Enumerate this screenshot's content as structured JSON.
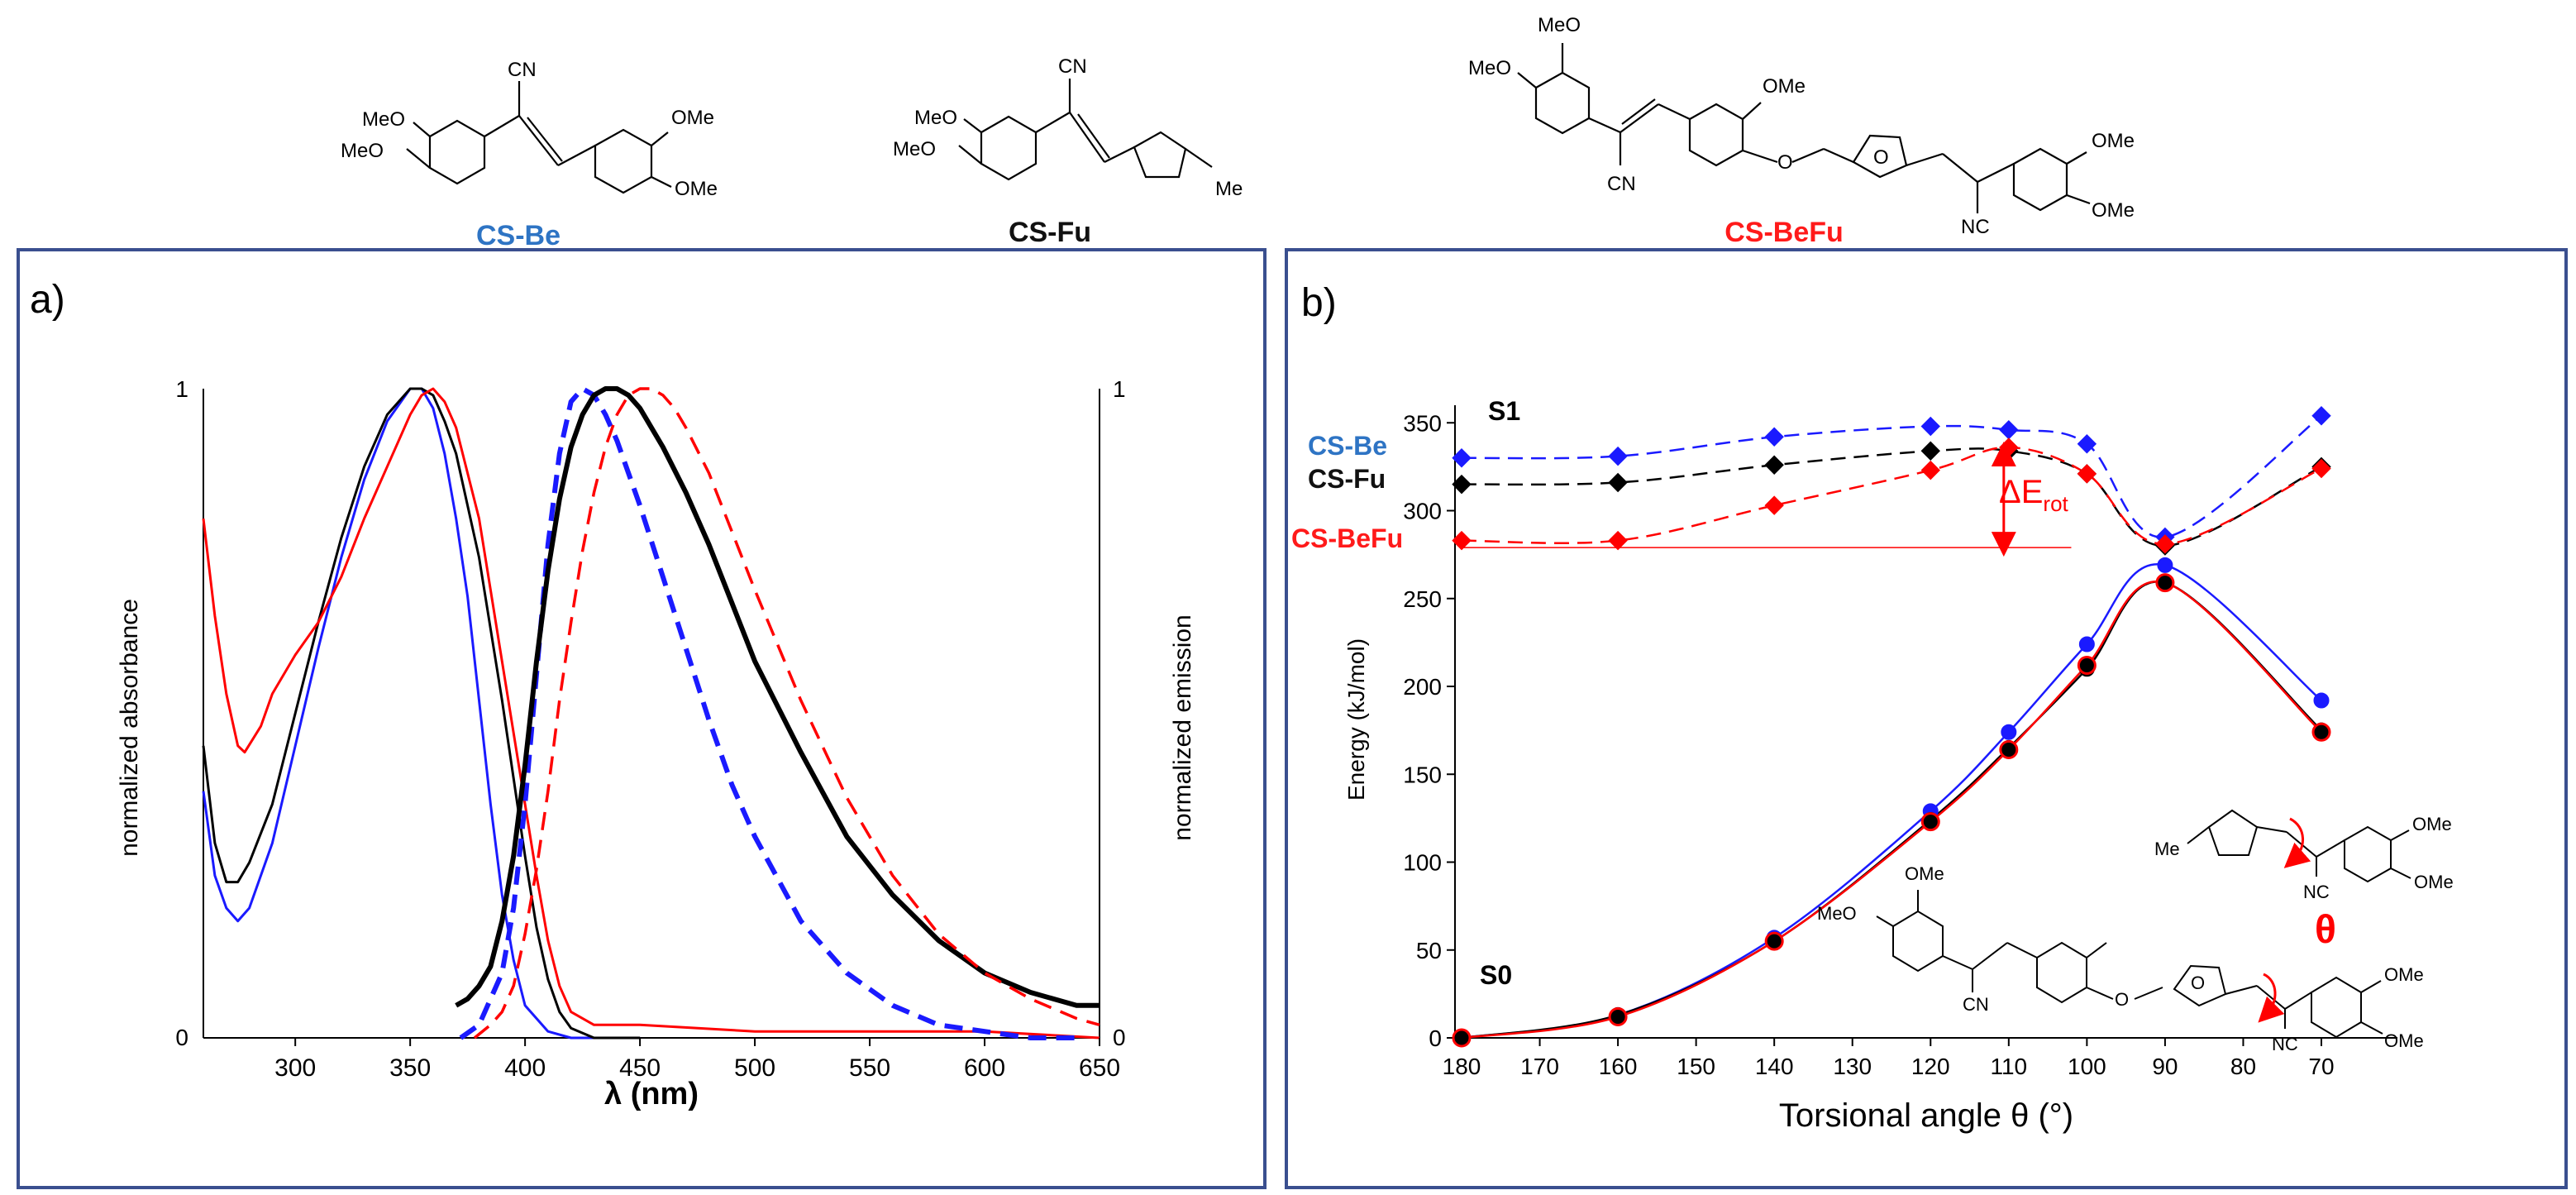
{
  "compounds": {
    "cs_be": {
      "label": "CS-Be",
      "color": "#2e74c4",
      "substituents": [
        "MeO",
        "MeO",
        "CN",
        "OMe",
        "OMe"
      ]
    },
    "cs_fu": {
      "label": "CS-Fu",
      "color": "#111111",
      "substituents": [
        "MeO",
        "MeO",
        "CN",
        "Me"
      ]
    },
    "cs_befu": {
      "label": "CS-BeFu",
      "color": "#ff1a1a",
      "substituents": [
        "MeO",
        "MeO",
        "OMe",
        "CN",
        "O",
        "O",
        "NC",
        "OMe",
        "OMe"
      ]
    }
  },
  "panel_a": {
    "label": "a)",
    "xlabel": "λ (nm)",
    "ylabel_left": "normalized absorbance",
    "ylabel_right": "normalized emission",
    "y_ticks_left": [
      "0",
      "1"
    ],
    "y_ticks_right": [
      "0",
      "1"
    ],
    "x_ticks": [
      "300",
      "350",
      "400",
      "450",
      "500",
      "550",
      "600",
      "650"
    ]
  },
  "panel_b": {
    "label": "b)",
    "xlabel": "Torsional angle θ (°)",
    "ylabel": "Energy (kJ/mol)",
    "x_ticks": [
      "180",
      "170",
      "160",
      "150",
      "140",
      "130",
      "120",
      "110",
      "100",
      "90",
      "80",
      "70"
    ],
    "y_ticks": [
      "0",
      "50",
      "100",
      "150",
      "200",
      "250",
      "300",
      "350"
    ],
    "state_s1": "S1",
    "state_s0": "S0",
    "delta_label": "ΔE",
    "delta_sub": "rot",
    "theta_label": "θ",
    "legend": [
      "CS-Be",
      "CS-Fu",
      "CS-BeFu"
    ],
    "inset_labels": {
      "me": "Me",
      "nc": "NC",
      "ome1": "OMe",
      "ome2": "OMe",
      "meo": "MeO",
      "ome3": "OMe",
      "cn": "CN",
      "o": "O",
      "o2": "O",
      "nc2": "NC",
      "ome4": "OMe",
      "ome5": "OMe"
    }
  },
  "chart_data": [
    {
      "type": "line",
      "title": "a)",
      "xlabel": "λ (nm)",
      "ylabel": "normalized absorbance / normalized emission",
      "xlim": [
        260,
        650
      ],
      "ylim": [
        0,
        1
      ],
      "series": [
        {
          "name": "CS-Be absorbance",
          "color": "#1a1aff",
          "style": "solid",
          "x": [
            260,
            265,
            270,
            275,
            280,
            290,
            300,
            310,
            320,
            330,
            340,
            350,
            355,
            360,
            365,
            370,
            375,
            380,
            385,
            390,
            395,
            400,
            410,
            420,
            430,
            440,
            450
          ],
          "y": [
            0.38,
            0.25,
            0.2,
            0.18,
            0.2,
            0.3,
            0.45,
            0.6,
            0.74,
            0.86,
            0.95,
            1.0,
            1.0,
            0.97,
            0.9,
            0.8,
            0.68,
            0.52,
            0.36,
            0.22,
            0.12,
            0.05,
            0.01,
            0,
            0,
            0,
            0
          ]
        },
        {
          "name": "CS-Fu absorbance",
          "color": "#000000",
          "style": "solid",
          "x": [
            260,
            265,
            270,
            275,
            280,
            290,
            300,
            310,
            320,
            330,
            340,
            350,
            355,
            360,
            365,
            370,
            380,
            390,
            395,
            400,
            405,
            410,
            415,
            420,
            430,
            440,
            450
          ],
          "y": [
            0.45,
            0.3,
            0.24,
            0.24,
            0.27,
            0.36,
            0.5,
            0.64,
            0.77,
            0.88,
            0.96,
            1.0,
            1.0,
            0.99,
            0.95,
            0.9,
            0.74,
            0.52,
            0.4,
            0.28,
            0.17,
            0.09,
            0.04,
            0.015,
            0,
            0,
            0
          ]
        },
        {
          "name": "CS-BeFu absorbance",
          "color": "#ff0000",
          "style": "solid",
          "x": [
            260,
            265,
            270,
            275,
            278,
            285,
            290,
            300,
            310,
            320,
            330,
            340,
            350,
            355,
            360,
            365,
            370,
            380,
            390,
            400,
            405,
            410,
            415,
            420,
            430,
            450,
            500,
            600,
            650
          ],
          "y": [
            0.8,
            0.65,
            0.53,
            0.45,
            0.44,
            0.48,
            0.53,
            0.59,
            0.64,
            0.71,
            0.8,
            0.88,
            0.96,
            0.99,
            1.0,
            0.98,
            0.94,
            0.8,
            0.58,
            0.36,
            0.25,
            0.15,
            0.08,
            0.04,
            0.02,
            0.02,
            0.01,
            0.01,
            0
          ]
        },
        {
          "name": "CS-Be emission",
          "color": "#1a1aff",
          "style": "dashed",
          "x": [
            372,
            380,
            390,
            395,
            400,
            405,
            410,
            415,
            420,
            425,
            430,
            435,
            440,
            450,
            460,
            470,
            480,
            490,
            500,
            520,
            540,
            560,
            580,
            600,
            620,
            640
          ],
          "y": [
            0,
            0.02,
            0.1,
            0.2,
            0.36,
            0.56,
            0.76,
            0.9,
            0.98,
            1.0,
            0.99,
            0.96,
            0.92,
            0.82,
            0.71,
            0.6,
            0.49,
            0.39,
            0.31,
            0.18,
            0.1,
            0.05,
            0.02,
            0.01,
            0,
            0
          ]
        },
        {
          "name": "CS-Fu emission",
          "color": "#000000",
          "style": "solid-thick",
          "x": [
            370,
            375,
            380,
            385,
            390,
            395,
            400,
            405,
            410,
            415,
            420,
            425,
            430,
            435,
            440,
            445,
            450,
            455,
            460,
            470,
            480,
            490,
            500,
            520,
            540,
            560,
            580,
            600,
            620,
            640,
            650
          ],
          "y": [
            0.05,
            0.06,
            0.08,
            0.11,
            0.18,
            0.28,
            0.42,
            0.58,
            0.72,
            0.83,
            0.91,
            0.96,
            0.99,
            1.0,
            1.0,
            0.99,
            0.97,
            0.94,
            0.91,
            0.84,
            0.76,
            0.67,
            0.58,
            0.44,
            0.31,
            0.22,
            0.15,
            0.1,
            0.07,
            0.05,
            0.05
          ]
        },
        {
          "name": "CS-BeFu emission",
          "color": "#ff0000",
          "style": "dashed",
          "x": [
            378,
            385,
            390,
            395,
            400,
            405,
            410,
            415,
            420,
            425,
            430,
            435,
            440,
            445,
            450,
            455,
            460,
            465,
            470,
            480,
            490,
            500,
            520,
            540,
            560,
            580,
            600,
            620,
            640,
            650
          ],
          "y": [
            0,
            0.02,
            0.04,
            0.08,
            0.16,
            0.26,
            0.38,
            0.52,
            0.64,
            0.75,
            0.84,
            0.91,
            0.96,
            0.99,
            1.0,
            1.0,
            0.99,
            0.97,
            0.94,
            0.87,
            0.78,
            0.69,
            0.52,
            0.37,
            0.25,
            0.16,
            0.1,
            0.06,
            0.03,
            0.02
          ]
        }
      ]
    },
    {
      "type": "line",
      "title": "b)",
      "xlabel": "Torsional angle θ (°)",
      "ylabel": "Energy (kJ/mol)",
      "xlim": [
        180,
        65
      ],
      "ylim": [
        0,
        360
      ],
      "x_reversed": true,
      "series": [
        {
          "name": "CS-Be S1",
          "color": "#1a1aff",
          "marker": "diamond",
          "style": "dashed",
          "x": [
            180,
            160,
            140,
            120,
            110,
            100,
            90,
            70
          ],
          "y": [
            330,
            331,
            342,
            348,
            346,
            338,
            285,
            354
          ]
        },
        {
          "name": "CS-Fu S1",
          "color": "#000000",
          "marker": "diamond",
          "style": "dashed",
          "x": [
            180,
            160,
            140,
            120,
            110,
            100,
            90,
            70
          ],
          "y": [
            315,
            316,
            326,
            334,
            334,
            321,
            280,
            325
          ]
        },
        {
          "name": "CS-BeFu S1",
          "color": "#ff0000",
          "marker": "diamond",
          "style": "dashed",
          "x": [
            180,
            160,
            140,
            120,
            110,
            100,
            90,
            70
          ],
          "y": [
            283,
            283,
            303,
            323,
            336,
            321,
            281,
            324
          ]
        },
        {
          "name": "CS-Be S0",
          "color": "#1a1aff",
          "marker": "circle",
          "style": "solid",
          "x": [
            180,
            160,
            140,
            120,
            110,
            100,
            90,
            70
          ],
          "y": [
            0,
            13,
            57,
            129,
            174,
            224,
            269,
            192
          ]
        },
        {
          "name": "CS-Fu S0",
          "color": "#000000",
          "marker": "circle",
          "style": "solid",
          "x": [
            180,
            160,
            140,
            120,
            110,
            100,
            90,
            70
          ],
          "y": [
            0,
            13,
            55,
            124,
            165,
            210,
            259,
            175
          ]
        },
        {
          "name": "CS-BeFu S0",
          "color": "#ff0000",
          "marker": "circle",
          "style": "solid",
          "x": [
            180,
            160,
            140,
            120,
            110,
            100,
            90,
            70
          ],
          "y": [
            0,
            12,
            55,
            123,
            164,
            212,
            259,
            174
          ]
        }
      ],
      "annotations": {
        "delta_ref_energy": 279,
        "delta_top_energy": 336,
        "delta_at_angle": 110
      }
    }
  ]
}
